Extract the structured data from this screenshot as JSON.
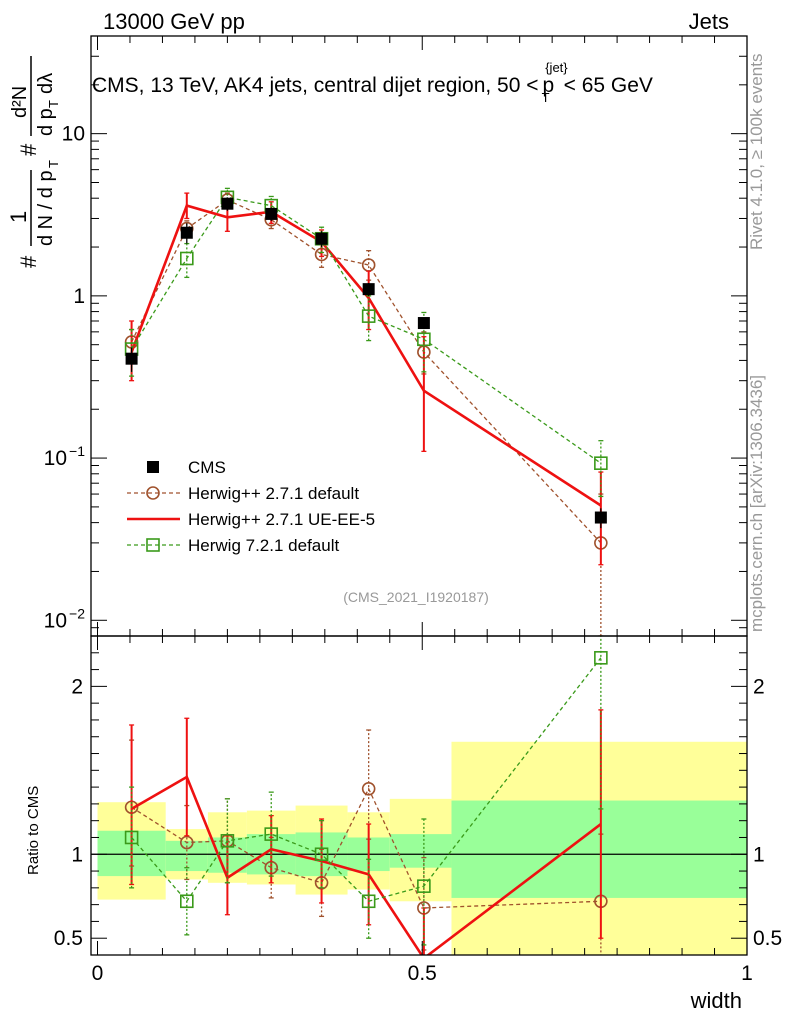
{
  "header": {
    "left": "13000 GeV pp",
    "right": "Jets"
  },
  "side_labels": {
    "right_top": "Rivet 4.1.0, ≥ 100k events",
    "right_bottom": "mcplots.cern.ch [arXiv:1306.3436]"
  },
  "watermark": "(CMS_2021_I1920187)",
  "chart_data": [
    {
      "panel": "main",
      "type": "line",
      "title": "CMS, 13 TeV, AK4 jets, central dijet region, 50 < p_T^{jet} < 65 GeV",
      "title_parts": {
        "prefix": "CMS, 13 TeV, AK4 jets, central dijet region, 50 <",
        "var": "p",
        "sub": "T",
        "sup": "{jet}",
        "suffix": "< 65 GeV"
      },
      "ylabel": "1/N dN/dλ (as printed: # 1 / (d N / d p_T) # d²N / (d p_T dλ))",
      "ylabel_parts": {
        "hash": "#",
        "one": "1",
        "frac1_den": "d N / d p",
        "sub_T": "T",
        "sq_num": "d²N",
        "frac2_den": "d p",
        "dl": "dλ"
      },
      "yscale": "log",
      "ylim": [
        0.008,
        40
      ],
      "xlim": [
        -0.01,
        1.0
      ],
      "y_ticks": [
        {
          "v": 0.01,
          "label": "10",
          "sup": "−2"
        },
        {
          "v": 0.1,
          "label": "10",
          "sup": "−1"
        },
        {
          "v": 1,
          "label": "1"
        },
        {
          "v": 10,
          "label": "10"
        }
      ],
      "legend_position": "lower-left",
      "series": [
        {
          "name": "CMS",
          "style": "data",
          "color": "#000000",
          "x": [
            0.0525,
            0.1375,
            0.2,
            0.2675,
            0.345,
            0.4175,
            0.5025,
            0.775
          ],
          "y": [
            0.41,
            2.45,
            3.7,
            3.2,
            2.25,
            1.1,
            0.68,
            0.043
          ],
          "err_lo": [
            0.07,
            0.35,
            0.35,
            0.3,
            0.25,
            0.1,
            0.05,
            0.006
          ],
          "err_hi": [
            0.07,
            0.35,
            0.35,
            0.3,
            0.25,
            0.1,
            0.05,
            0.006
          ]
        },
        {
          "name": "Herwig++ 2.7.1 default",
          "style": "circle-dashed",
          "color": "#a0522d",
          "x": [
            0.0525,
            0.1375,
            0.2,
            0.2675,
            0.345,
            0.4175,
            0.5025,
            0.775
          ],
          "y": [
            0.52,
            2.6,
            3.9,
            2.95,
            1.8,
            1.55,
            0.45,
            0.03
          ],
          "err_lo": [
            0.1,
            0.3,
            0.4,
            0.35,
            0.3,
            0.3,
            0.12,
            0.022
          ],
          "err_hi": [
            0.1,
            0.3,
            0.4,
            0.35,
            0.3,
            0.35,
            0.15,
            0.03
          ]
        },
        {
          "name": "Herwig++ 2.7.1 UE-EE-5",
          "style": "solid",
          "color": "#ee1111",
          "x": [
            0.0525,
            0.1375,
            0.2,
            0.2675,
            0.345,
            0.4175,
            0.5025,
            0.775
          ],
          "y": [
            0.45,
            3.6,
            3.05,
            3.3,
            2.15,
            0.97,
            0.26,
            0.051
          ],
          "err_lo": [
            0.15,
            0.6,
            0.55,
            0.5,
            0.4,
            0.35,
            0.15,
            0.029
          ],
          "err_hi": [
            0.25,
            0.7,
            0.6,
            0.5,
            0.4,
            0.45,
            0.3,
            0.031
          ]
        },
        {
          "name": "Herwig 7.2.1 default",
          "style": "square-dashed",
          "color": "#3a9a1a",
          "x": [
            0.0525,
            0.1375,
            0.2,
            0.2675,
            0.345,
            0.4175,
            0.5025,
            0.775
          ],
          "y": [
            0.47,
            1.7,
            4.05,
            3.6,
            2.25,
            0.75,
            0.54,
            0.093
          ],
          "err_lo": [
            0.15,
            0.4,
            0.55,
            0.5,
            0.4,
            0.22,
            0.2,
            0.035
          ],
          "err_hi": [
            0.15,
            0.4,
            0.55,
            0.5,
            0.4,
            0.25,
            0.25,
            0.035
          ]
        }
      ]
    },
    {
      "panel": "ratio",
      "type": "line",
      "ylabel": "Ratio to CMS",
      "ylim": [
        0.4,
        2.3
      ],
      "xlim": [
        -0.01,
        1.0
      ],
      "xlabel": "width",
      "x_ticks": [
        {
          "v": 0,
          "label": "0"
        },
        {
          "v": 0.5,
          "label": "0.5"
        },
        {
          "v": 1,
          "label": "1"
        }
      ],
      "y_ticks": [
        {
          "v": 0.5,
          "label": "0.5"
        },
        {
          "v": 1,
          "label": "1"
        },
        {
          "v": 2,
          "label": "2"
        }
      ],
      "bands": {
        "edges": [
          0.0,
          0.105,
          0.17,
          0.23,
          0.305,
          0.385,
          0.45,
          0.545,
          1.0
        ],
        "inner_lo": [
          0.87,
          0.9,
          0.89,
          0.88,
          0.87,
          0.9,
          0.92,
          0.74
        ],
        "inner_hi": [
          1.14,
          1.08,
          1.1,
          1.12,
          1.13,
          1.1,
          1.12,
          1.32
        ],
        "outer_lo": [
          0.73,
          0.85,
          0.83,
          0.82,
          0.76,
          0.79,
          0.72,
          0.35
        ],
        "outer_hi": [
          1.31,
          1.15,
          1.25,
          1.26,
          1.29,
          1.25,
          1.33,
          1.67
        ],
        "inner_color": "#99ff99",
        "outer_color": "#ffff99"
      },
      "series": [
        {
          "name": "Herwig++ 2.7.1 default",
          "style": "circle-dashed",
          "color": "#a0522d",
          "x": [
            0.0525,
            0.1375,
            0.2,
            0.2675,
            0.345,
            0.4175,
            0.5025,
            0.775
          ],
          "y": [
            1.28,
            1.07,
            1.08,
            0.92,
            0.83,
            1.39,
            0.68,
            0.72
          ],
          "err_lo": [
            0.35,
            0.22,
            0.25,
            0.18,
            0.2,
            0.3,
            0.25,
            0.4
          ],
          "err_hi": [
            0.4,
            0.22,
            0.25,
            0.18,
            0.2,
            0.35,
            0.3,
            0.4
          ]
        },
        {
          "name": "Herwig++ 2.7.1 UE-EE-5",
          "style": "solid",
          "color": "#ee1111",
          "x": [
            0.0525,
            0.1375,
            0.2,
            0.2675,
            0.345,
            0.4175,
            0.5025,
            0.775
          ],
          "y": [
            1.27,
            1.46,
            0.86,
            1.03,
            0.96,
            0.88,
            0.38,
            1.18
          ],
          "err_lo": [
            0.45,
            0.35,
            0.22,
            0.2,
            0.25,
            0.3,
            0.2,
            0.68
          ],
          "err_hi": [
            0.5,
            0.35,
            0.25,
            0.2,
            0.25,
            0.3,
            0.3,
            0.68
          ]
        },
        {
          "name": "Herwig 7.2.1 default",
          "style": "square-dashed",
          "color": "#3a9a1a",
          "x": [
            0.0525,
            0.1375,
            0.2,
            0.2675,
            0.345,
            0.4175,
            0.5025,
            0.775
          ],
          "y": [
            1.1,
            0.72,
            1.08,
            1.12,
            1.0,
            0.72,
            0.81,
            2.17
          ],
          "err_lo": [
            0.3,
            0.2,
            0.25,
            0.25,
            0.2,
            0.22,
            0.35,
            0.9
          ],
          "err_hi": [
            0.3,
            0.2,
            0.25,
            0.25,
            0.2,
            0.25,
            0.4,
            0.2
          ]
        }
      ]
    }
  ]
}
